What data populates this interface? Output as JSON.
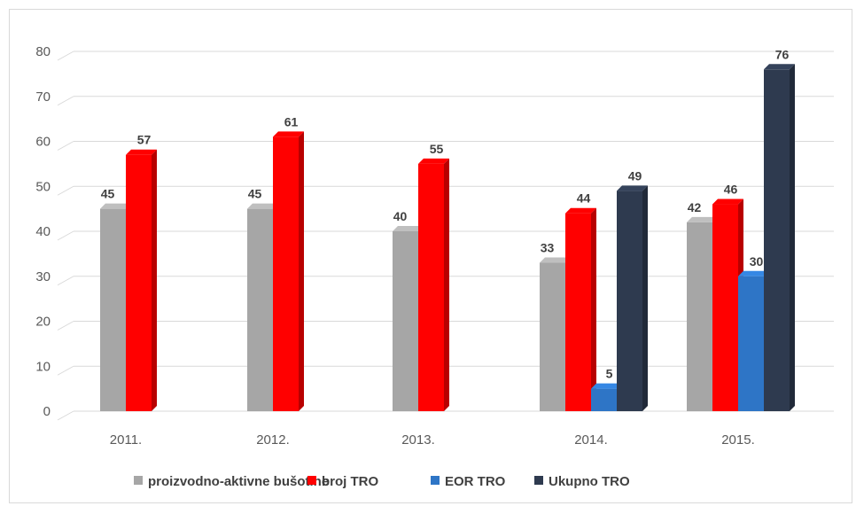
{
  "chart_data": {
    "type": "bar",
    "categories": [
      "2011.",
      "2012.",
      "2013.",
      "2014.",
      "2015."
    ],
    "series": [
      {
        "name": "proizvodno-aktivne bušotine",
        "color": "#a6a6a6",
        "values": [
          45,
          45,
          40,
          33,
          42
        ]
      },
      {
        "name": "broj TRO",
        "color": "#ff0000",
        "values": [
          57,
          61,
          55,
          44,
          46
        ]
      },
      {
        "name": "EOR TRO",
        "color": "#2e75c6",
        "values": [
          null,
          null,
          null,
          5,
          30
        ]
      },
      {
        "name": "Ukupno TRO",
        "color": "#2e3a4f",
        "values": [
          null,
          null,
          null,
          49,
          76
        ]
      }
    ],
    "ylim": [
      0,
      80
    ],
    "yticks": [
      0,
      10,
      20,
      30,
      40,
      50,
      60,
      70,
      80
    ],
    "grid": true,
    "style": "3d-column",
    "legend_position": "bottom",
    "title": "",
    "xlabel": "",
    "ylabel": ""
  }
}
